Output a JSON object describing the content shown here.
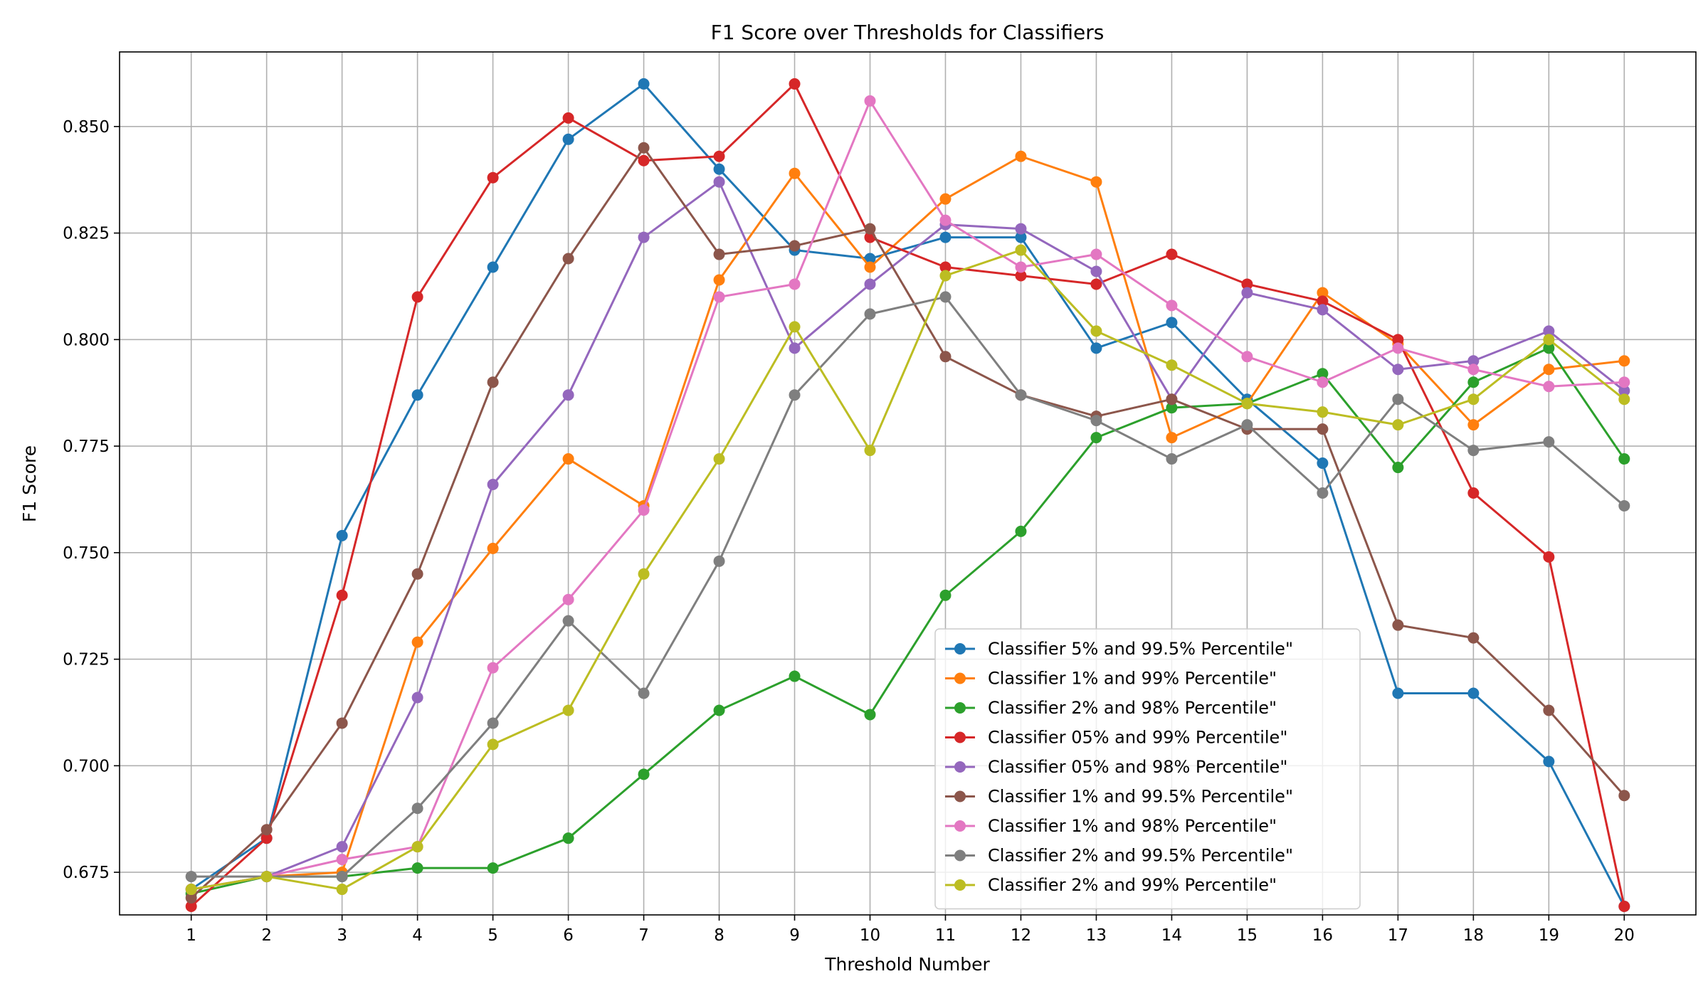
{
  "chart_data": {
    "type": "line",
    "title": "F1 Score over Thresholds for Classifiers",
    "xlabel": "Threshold Number",
    "ylabel": "F1 Score",
    "x": [
      1,
      2,
      3,
      4,
      5,
      6,
      7,
      8,
      9,
      10,
      11,
      12,
      13,
      14,
      15,
      16,
      17,
      18,
      19,
      20
    ],
    "xlim": [
      0.05,
      20.95
    ],
    "ylim": [
      0.665,
      0.8675
    ],
    "yticks": [
      "0.675",
      "0.700",
      "0.725",
      "0.750",
      "0.775",
      "0.800",
      "0.825",
      "0.850"
    ],
    "grid": true,
    "legend_position": "lower-center",
    "series": [
      {
        "name": "Classifier 5% and 99.5% Percentile\"",
        "color": "#1f77b4",
        "values": [
          0.671,
          0.683,
          0.754,
          0.787,
          0.817,
          0.847,
          0.86,
          0.84,
          0.821,
          0.819,
          0.824,
          0.824,
          0.798,
          0.804,
          0.786,
          0.771,
          0.717,
          0.717,
          0.701,
          0.667
        ]
      },
      {
        "name": "Classifier 1% and 99% Percentile\"",
        "color": "#ff7f0e",
        "values": [
          0.671,
          0.674,
          0.675,
          0.729,
          0.751,
          0.772,
          0.761,
          0.814,
          0.839,
          0.817,
          0.833,
          0.843,
          0.837,
          0.777,
          0.785,
          0.811,
          0.799,
          0.78,
          0.793,
          0.795
        ]
      },
      {
        "name": "Classifier 2% and 98% Percentile\"",
        "color": "#2ca02c",
        "values": [
          0.67,
          0.674,
          0.674,
          0.676,
          0.676,
          0.683,
          0.698,
          0.713,
          0.721,
          0.712,
          0.74,
          0.755,
          0.777,
          0.784,
          0.785,
          0.792,
          0.77,
          0.79,
          0.798,
          0.772
        ]
      },
      {
        "name": "Classifier 05% and 99% Percentile\"",
        "color": "#d62728",
        "values": [
          0.667,
          0.683,
          0.74,
          0.81,
          0.838,
          0.852,
          0.842,
          0.843,
          0.86,
          0.824,
          0.817,
          0.815,
          0.813,
          0.82,
          0.813,
          0.809,
          0.8,
          0.764,
          0.749,
          0.667
        ]
      },
      {
        "name": "Classifier 05% and 98% Percentile\"",
        "color": "#9467bd",
        "values": [
          0.671,
          0.674,
          0.681,
          0.716,
          0.766,
          0.787,
          0.824,
          0.837,
          0.798,
          0.813,
          0.827,
          0.826,
          0.816,
          0.786,
          0.811,
          0.807,
          0.793,
          0.795,
          0.802,
          0.788
        ]
      },
      {
        "name": "Classifier 1% and 99.5% Percentile\"",
        "color": "#8c564b",
        "values": [
          0.669,
          0.685,
          0.71,
          0.745,
          0.79,
          0.819,
          0.845,
          0.82,
          0.822,
          0.826,
          0.796,
          0.787,
          0.782,
          0.786,
          0.779,
          0.779,
          0.733,
          0.73,
          0.713,
          0.693
        ]
      },
      {
        "name": "Classifier 1% and 98% Percentile\"",
        "color": "#e377c2",
        "values": [
          0.671,
          0.674,
          0.678,
          0.681,
          0.723,
          0.739,
          0.76,
          0.81,
          0.813,
          0.856,
          0.828,
          0.817,
          0.82,
          0.808,
          0.796,
          0.79,
          0.798,
          0.793,
          0.789,
          0.79
        ]
      },
      {
        "name": "Classifier 2% and 99.5% Percentile\"",
        "color": "#7f7f7f",
        "values": [
          0.674,
          0.674,
          0.674,
          0.69,
          0.71,
          0.734,
          0.717,
          0.748,
          0.787,
          0.806,
          0.81,
          0.787,
          0.781,
          0.772,
          0.78,
          0.764,
          0.786,
          0.774,
          0.776,
          0.761
        ]
      },
      {
        "name": "Classifier 2% and 99% Percentile\"",
        "color": "#bcbd22",
        "values": [
          0.671,
          0.674,
          0.671,
          0.681,
          0.705,
          0.713,
          0.745,
          0.772,
          0.803,
          0.774,
          0.815,
          0.821,
          0.802,
          0.794,
          0.785,
          0.783,
          0.78,
          0.786,
          0.8,
          0.786
        ]
      }
    ]
  }
}
